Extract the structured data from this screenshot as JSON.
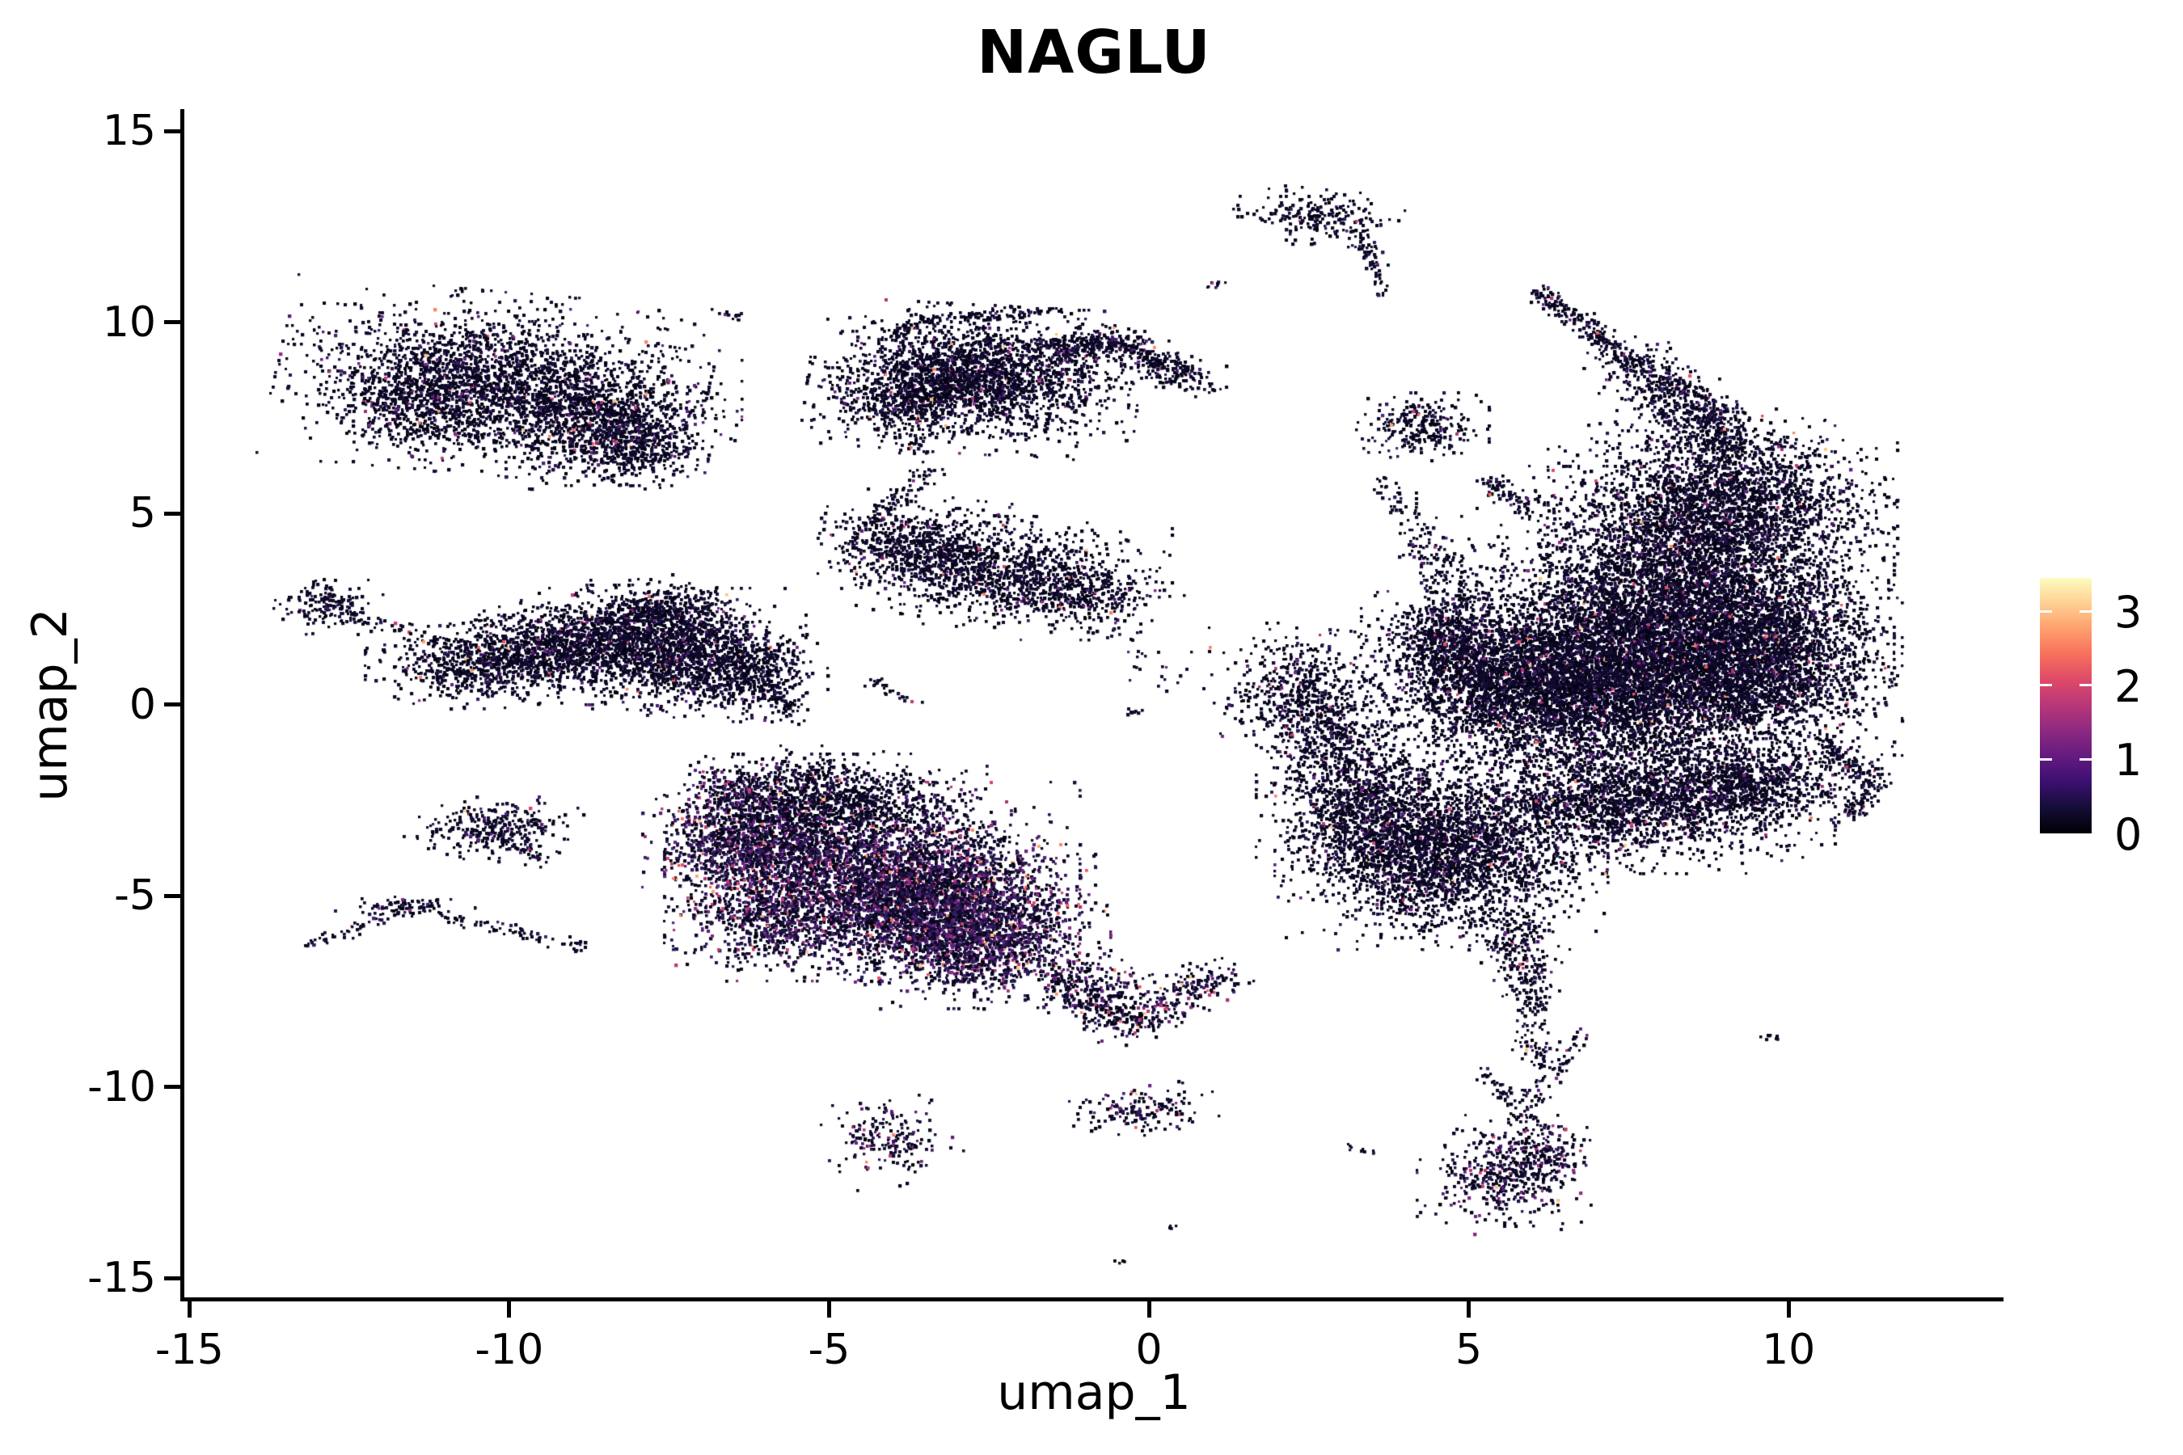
{
  "chart_data": {
    "type": "scatter",
    "title": "NAGLU",
    "xlabel": "umap_1",
    "ylabel": "umap_2",
    "xlim": [
      -15.08,
      13.36
    ],
    "ylim": [
      -15.5,
      15.58
    ],
    "x_ticks": [
      -15,
      -10,
      -5,
      0,
      5,
      10
    ],
    "y_ticks": [
      15,
      10,
      5,
      0,
      -5,
      -10,
      -15
    ],
    "grid": false,
    "background": "#ffffff",
    "axis_color": "#000000",
    "legend_position": "right",
    "colorbar": {
      "ticks": [
        0,
        1,
        2,
        3
      ],
      "vmax": 3.45,
      "colormap": "magma",
      "gradient": [
        "#000004",
        "#140e36",
        "#3b0f70",
        "#641a80",
        "#8c2981",
        "#b73779",
        "#de4968",
        "#f7705c",
        "#fe9f6d",
        "#fecf92",
        "#fcfdbf"
      ]
    },
    "point_palette": {
      "zero": [
        "#03020f",
        "#070522",
        "#0c0826",
        "#11092b",
        "#150d31"
      ],
      "low": [
        "#1c1140",
        "#231549",
        "#2a1852",
        "#311b5a"
      ],
      "mid": [
        "#3f1a68",
        "#4c1d75",
        "#5a217e",
        "#682383"
      ],
      "high": [
        "#7d2882",
        "#952c80",
        "#ac3277",
        "#c23a6f"
      ],
      "hot": [
        "#d8456b",
        "#e85462",
        "#f46b5b",
        "#fb8661",
        "#fca46e",
        "#fdc47f"
      ]
    },
    "mixes": {
      "d": [
        0.862,
        0.085,
        0.033,
        0.013,
        0.007
      ],
      "p": [
        0.5,
        0.25,
        0.16,
        0.065,
        0.025
      ],
      "m": [
        0.7,
        0.14,
        0.09,
        0.05,
        0.02
      ],
      "h": [
        0.25,
        0.1,
        0.15,
        0.2,
        0.3
      ]
    },
    "clusters": [
      {
        "t": "g",
        "x": -10.3,
        "y": 8.45,
        "sx": 1.3,
        "sy": 0.92,
        "n": 2400,
        "r": -8
      },
      {
        "t": "g",
        "x": -8.6,
        "y": 7.55,
        "sx": 0.85,
        "sy": 0.72,
        "n": 900
      },
      {
        "t": "g",
        "x": -8.05,
        "y": 6.75,
        "sx": 0.48,
        "sy": 0.38,
        "n": 350
      },
      {
        "t": "g",
        "x": -11.45,
        "y": 7.95,
        "sx": 0.5,
        "sy": 0.58,
        "n": 350
      },
      {
        "t": "l",
        "x": -6.75,
        "y": 10.25,
        "x2": -6.45,
        "y2": 10.2,
        "w": 0.05,
        "n": 14
      },
      {
        "t": "g",
        "x": -12.85,
        "y": 2.65,
        "sx": 0.33,
        "sy": 0.3,
        "n": 160
      },
      {
        "t": "l",
        "x": -12.4,
        "y": 2.3,
        "x2": -11.0,
        "y2": 1.7,
        "w": 0.1,
        "n": 45
      },
      {
        "t": "g",
        "x": -10.45,
        "y": 1.1,
        "sx": 0.7,
        "sy": 0.45,
        "n": 700
      },
      {
        "t": "g",
        "x": -9.4,
        "y": 1.65,
        "sx": 0.6,
        "sy": 0.5,
        "n": 600
      },
      {
        "t": "g",
        "x": -8.3,
        "y": 1.6,
        "sx": 0.7,
        "sy": 0.6,
        "n": 900
      },
      {
        "t": "g",
        "x": -7.2,
        "y": 1.4,
        "sx": 0.7,
        "sy": 0.65,
        "n": 950
      },
      {
        "t": "g",
        "x": -6.35,
        "y": 0.9,
        "sx": 0.5,
        "sy": 0.5,
        "n": 500
      },
      {
        "t": "g",
        "x": -7.6,
        "y": 2.45,
        "sx": 0.5,
        "sy": 0.38,
        "n": 420
      },
      {
        "t": "l",
        "x": -6.0,
        "y": 0.5,
        "x2": -5.55,
        "y2": -0.1,
        "w": 0.15,
        "n": 70
      },
      {
        "t": "g",
        "x": -2.75,
        "y": 8.55,
        "sx": 1.0,
        "sy": 0.75,
        "n": 2000,
        "r": -5
      },
      {
        "t": "g",
        "x": -3.9,
        "y": 8.05,
        "sx": 0.55,
        "sy": 0.55,
        "n": 450
      },
      {
        "t": "g",
        "x": -1.7,
        "y": 8.95,
        "sx": 0.9,
        "sy": 0.5,
        "n": 220
      },
      {
        "t": "l",
        "x": -1.55,
        "y": 9.35,
        "x2": -0.5,
        "y2": 9.52,
        "w": 0.2,
        "n": 220
      },
      {
        "t": "l",
        "x": -0.5,
        "y": 9.52,
        "x2": 0.72,
        "y2": 8.45,
        "w": 0.2,
        "n": 260
      },
      {
        "t": "l",
        "x": -3.5,
        "y": 10.15,
        "x2": -1.4,
        "y2": 10.35,
        "w": 0.07,
        "n": 90
      },
      {
        "t": "l",
        "x": -4.05,
        "y": 9.65,
        "x2": -3.55,
        "y2": 10.1,
        "w": 0.07,
        "n": 40
      },
      {
        "t": "g",
        "x": -3.3,
        "y": 3.9,
        "sx": 0.75,
        "sy": 0.6,
        "n": 800,
        "r": -10
      },
      {
        "t": "g",
        "x": -2.0,
        "y": 3.4,
        "sx": 0.9,
        "sy": 0.6,
        "n": 700
      },
      {
        "t": "g",
        "x": -0.9,
        "y": 2.9,
        "sx": 0.55,
        "sy": 0.45,
        "n": 280
      },
      {
        "t": "g",
        "x": -4.1,
        "y": 4.3,
        "sx": 0.4,
        "sy": 0.4,
        "n": 180
      },
      {
        "t": "l",
        "x": -4.5,
        "y": 4.7,
        "x2": -3.35,
        "y2": 6.25,
        "w": 0.12,
        "n": 80
      },
      {
        "t": "l",
        "x": -4.35,
        "y": 0.7,
        "x2": -3.72,
        "y2": 0.08,
        "w": 0.08,
        "n": 26
      },
      {
        "t": "g",
        "x": 0.05,
        "y": 0.95,
        "sx": 0.35,
        "sy": 0.3,
        "n": 24
      },
      {
        "t": "l",
        "x": -0.5,
        "y": -0.15,
        "x2": -0.2,
        "y2": -0.1,
        "w": 0.05,
        "n": 8
      },
      {
        "t": "g",
        "x": -4.35,
        "y": -4.6,
        "sx": 1.25,
        "sy": 1.0,
        "n": 3600,
        "m": "p"
      },
      {
        "t": "g",
        "x": -6.25,
        "y": -3.55,
        "sx": 0.65,
        "sy": 0.65,
        "n": 1200,
        "m": "p"
      },
      {
        "t": "g",
        "x": -4.9,
        "y": -2.55,
        "sx": 0.9,
        "sy": 0.5,
        "n": 1000
      },
      {
        "t": "g",
        "x": -5.5,
        "y": -1.75,
        "sx": 0.6,
        "sy": 0.3,
        "n": 140
      },
      {
        "t": "g",
        "x": -2.7,
        "y": -6.1,
        "sx": 0.8,
        "sy": 0.7,
        "n": 1400,
        "m": "p"
      },
      {
        "t": "g",
        "x": -3.2,
        "y": -5.1,
        "sx": 0.9,
        "sy": 0.8,
        "n": 1200,
        "m": "p"
      },
      {
        "t": "g",
        "x": -5.9,
        "y": -5.6,
        "sx": 0.6,
        "sy": 0.5,
        "n": 450,
        "m": "p"
      },
      {
        "t": "l",
        "x": -6.9,
        "y": -1.95,
        "x2": -6.1,
        "y2": -2.6,
        "w": 0.25,
        "n": 160,
        "m": "p"
      },
      {
        "t": "g",
        "x": -10.25,
        "y": -3.2,
        "sx": 0.55,
        "sy": 0.33,
        "n": 300,
        "r": 8
      },
      {
        "t": "l",
        "x": -9.9,
        "y": -3.6,
        "x2": -9.5,
        "y2": -4.0,
        "w": 0.12,
        "n": 40
      },
      {
        "t": "g",
        "x": -11.65,
        "y": -5.25,
        "sx": 0.42,
        "sy": 0.13,
        "n": 85
      },
      {
        "t": "l",
        "x": -11.2,
        "y": -5.45,
        "x2": -8.7,
        "y2": -6.35,
        "w": 0.08,
        "n": 70
      },
      {
        "t": "l",
        "x": -13.25,
        "y": -6.3,
        "x2": -11.95,
        "y2": -5.55,
        "w": 0.07,
        "n": 45
      },
      {
        "t": "l",
        "x": -1.55,
        "y": -6.8,
        "x2": -0.4,
        "y2": -8.4,
        "w": 0.26,
        "n": 260,
        "m": "m"
      },
      {
        "t": "l",
        "x": -0.4,
        "y": -8.4,
        "x2": 1.2,
        "y2": -7.0,
        "w": 0.22,
        "n": 230,
        "m": "m"
      },
      {
        "t": "g",
        "x": -0.5,
        "y": -7.4,
        "sx": 0.45,
        "sy": 0.4,
        "n": 110,
        "m": "m"
      },
      {
        "t": "g",
        "x": -1.2,
        "y": -6.7,
        "sx": 0.25,
        "sy": 0.15,
        "n": 10,
        "m": "h"
      },
      {
        "t": "g",
        "x": -4.1,
        "y": -11.3,
        "sx": 0.42,
        "sy": 0.45,
        "n": 190,
        "m": "m",
        "r": 30
      },
      {
        "t": "g",
        "x": -0.1,
        "y": -10.55,
        "sx": 0.45,
        "sy": 0.3,
        "n": 160,
        "m": "m"
      },
      {
        "t": "g",
        "x": 2.6,
        "y": 12.8,
        "sx": 0.5,
        "sy": 0.3,
        "n": 210,
        "r": -15
      },
      {
        "t": "l",
        "x": 3.25,
        "y": 12.35,
        "x2": 3.5,
        "y2": 11.5,
        "w": 0.1,
        "n": 55
      },
      {
        "t": "l",
        "x": 3.5,
        "y": 11.4,
        "x2": 3.62,
        "y2": 10.7,
        "w": 0.05,
        "n": 14
      },
      {
        "t": "l",
        "x": 0.85,
        "y": 11.0,
        "x2": 1.1,
        "y2": 11.05,
        "w": 0.05,
        "n": 9
      },
      {
        "t": "l",
        "x": 6.05,
        "y": 10.9,
        "x2": 7.6,
        "y2": 8.9,
        "w": 0.12,
        "n": 220
      },
      {
        "t": "l",
        "x": 7.6,
        "y": 8.9,
        "x2": 9.2,
        "y2": 6.7,
        "w": 0.32,
        "n": 650
      },
      {
        "t": "g",
        "x": 8.95,
        "y": 5.3,
        "sx": 1.05,
        "sy": 0.95,
        "n": 2400
      },
      {
        "t": "g",
        "x": 8.25,
        "y": 2.5,
        "sx": 1.3,
        "sy": 1.45,
        "n": 5200
      },
      {
        "t": "g",
        "x": 9.55,
        "y": 1.1,
        "sx": 0.85,
        "sy": 1.05,
        "n": 2200
      },
      {
        "t": "g",
        "x": 7.15,
        "y": 0.55,
        "sx": 1.05,
        "sy": 1.15,
        "n": 3800
      },
      {
        "t": "g",
        "x": 5.35,
        "y": 0.6,
        "sx": 0.85,
        "sy": 0.85,
        "n": 2000
      },
      {
        "t": "g",
        "x": 4.6,
        "y": 1.85,
        "sx": 0.5,
        "sy": 0.5,
        "n": 500
      },
      {
        "t": "l",
        "x": 4.9,
        "y": 2.6,
        "x2": 4.2,
        "y2": 4.65,
        "w": 0.22,
        "n": 150
      },
      {
        "t": "l",
        "x": 4.15,
        "y": 4.8,
        "x2": 3.6,
        "y2": 5.9,
        "w": 0.12,
        "n": 40
      },
      {
        "t": "g",
        "x": 4.25,
        "y": 7.3,
        "sx": 0.4,
        "sy": 0.35,
        "n": 260
      },
      {
        "t": "l",
        "x": 5.25,
        "y": 5.95,
        "x2": 5.95,
        "y2": 5.05,
        "w": 0.12,
        "n": 80
      },
      {
        "t": "g",
        "x": 4.55,
        "y": -3.9,
        "sx": 1.0,
        "sy": 0.95,
        "n": 2600
      },
      {
        "t": "g",
        "x": 3.35,
        "y": -2.6,
        "sx": 0.65,
        "sy": 0.8,
        "n": 1000
      },
      {
        "t": "g",
        "x": 2.9,
        "y": -0.9,
        "sx": 0.45,
        "sy": 0.6,
        "n": 300
      },
      {
        "t": "g",
        "x": 2.35,
        "y": 0.35,
        "sx": 0.55,
        "sy": 0.7,
        "n": 550
      },
      {
        "t": "g",
        "x": 7.45,
        "y": -2.55,
        "sx": 1.25,
        "sy": 0.7,
        "n": 2000
      },
      {
        "t": "g",
        "x": 9.3,
        "y": -2.0,
        "sx": 0.8,
        "sy": 0.5,
        "n": 800
      },
      {
        "t": "l",
        "x": 10.5,
        "y": -0.85,
        "x2": 11.3,
        "y2": -2.05,
        "w": 0.16,
        "n": 130
      },
      {
        "t": "l",
        "x": 11.3,
        "y": -2.05,
        "x2": 10.95,
        "y2": -2.85,
        "w": 0.12,
        "n": 70
      },
      {
        "t": "l",
        "x": 5.6,
        "y": -5.6,
        "x2": 5.95,
        "y2": -7.6,
        "w": 0.26,
        "n": 240
      },
      {
        "t": "l",
        "x": 5.95,
        "y": -7.6,
        "x2": 6.05,
        "y2": -9.4,
        "w": 0.14,
        "n": 90
      },
      {
        "t": "g",
        "x": 5.6,
        "y": -12.25,
        "sx": 0.55,
        "sy": 0.6,
        "n": 430,
        "m": "m"
      },
      {
        "t": "g",
        "x": 6.1,
        "y": -11.7,
        "sx": 0.35,
        "sy": 0.4,
        "n": 150,
        "m": "m"
      },
      {
        "t": "l",
        "x": 5.7,
        "y": -10.9,
        "x2": 6.75,
        "y2": -8.6,
        "w": 0.12,
        "n": 80
      },
      {
        "t": "l",
        "x": 5.2,
        "y": -9.6,
        "x2": 5.6,
        "y2": -10.4,
        "w": 0.1,
        "n": 35
      },
      {
        "t": "g",
        "x": 9.7,
        "y": -8.65,
        "sx": 0.1,
        "sy": 0.06,
        "n": 9
      },
      {
        "t": "l",
        "x": 3.1,
        "y": -11.5,
        "x2": 3.5,
        "y2": -11.65,
        "w": 0.05,
        "n": 10
      },
      {
        "t": "g",
        "x": -0.4,
        "y": -14.55,
        "sx": 0.06,
        "sy": 0.05,
        "n": 4
      },
      {
        "t": "g",
        "x": 0.35,
        "y": -13.6,
        "sx": 0.05,
        "sy": 0.05,
        "n": 4
      }
    ]
  }
}
